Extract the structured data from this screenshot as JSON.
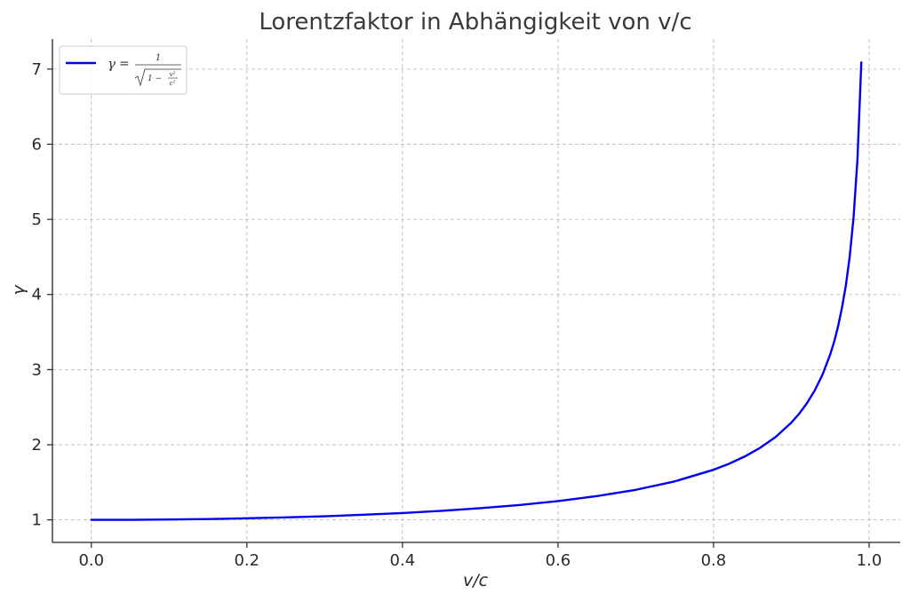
{
  "chart_data": {
    "type": "line",
    "title": "Lorentzfaktor in Abhängigkeit von v/c",
    "xlabel": "v/c",
    "ylabel": "γ",
    "xlim": [
      -0.05,
      1.04
    ],
    "ylim": [
      0.7,
      7.4
    ],
    "x_ticks": [
      "0.0",
      "0.2",
      "0.4",
      "0.6",
      "0.8",
      "1.0"
    ],
    "y_ticks": [
      "1",
      "2",
      "3",
      "4",
      "5",
      "6",
      "7"
    ],
    "grid": true,
    "legend_position": "top-left",
    "series": [
      {
        "name": "γ = 1/√(1 − v²/c²)",
        "color": "#0000ee",
        "x": [
          0.0,
          0.05,
          0.1,
          0.15,
          0.2,
          0.25,
          0.3,
          0.35,
          0.4,
          0.45,
          0.5,
          0.55,
          0.6,
          0.65,
          0.7,
          0.75,
          0.8,
          0.82,
          0.84,
          0.86,
          0.88,
          0.9,
          0.91,
          0.92,
          0.93,
          0.94,
          0.95,
          0.955,
          0.96,
          0.965,
          0.97,
          0.975,
          0.98,
          0.985,
          0.99
        ],
        "y": [
          1.0,
          1.001,
          1.005,
          1.011,
          1.021,
          1.033,
          1.048,
          1.068,
          1.091,
          1.12,
          1.155,
          1.197,
          1.25,
          1.316,
          1.4,
          1.512,
          1.667,
          1.747,
          1.843,
          1.96,
          2.105,
          2.294,
          2.412,
          2.552,
          2.721,
          2.931,
          3.203,
          3.369,
          3.571,
          3.818,
          4.113,
          4.5,
          5.025,
          5.795,
          7.089
        ]
      }
    ]
  },
  "legend": {
    "formula": {
      "gamma": "γ",
      "equals": "=",
      "numerator": "1",
      "one_minus": "1 −",
      "v_squared": "v²",
      "c_squared": "c²"
    }
  }
}
